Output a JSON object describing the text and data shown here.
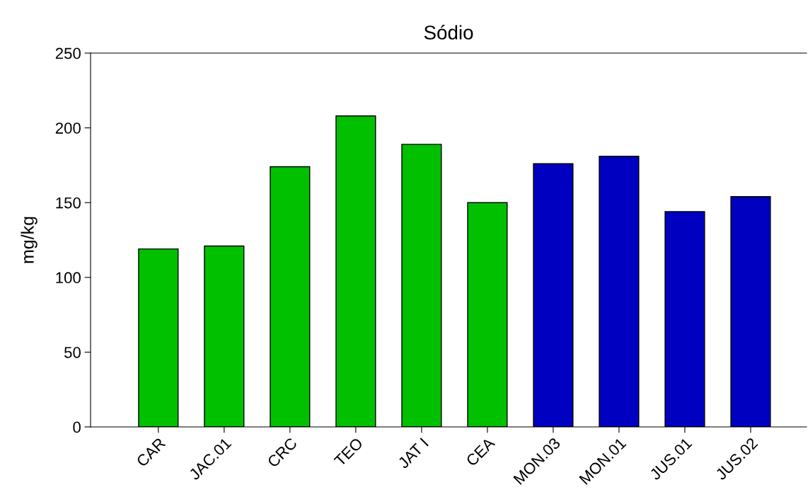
{
  "chart_data": {
    "type": "bar",
    "title": "Sódio",
    "ylabel": "mg/kg",
    "categories": [
      "CAR",
      "JAC.01",
      "CRC",
      "TEO",
      "JAT I",
      "CEA",
      "MON.03",
      "MON.01",
      "JUS.01",
      "JUS.02"
    ],
    "values": [
      119,
      121,
      174,
      208,
      189,
      150,
      176,
      181,
      144,
      154
    ],
    "colors": [
      "#00c000",
      "#00c000",
      "#00c000",
      "#00c000",
      "#00c000",
      "#00c000",
      "#0000c0",
      "#0000c0",
      "#0000c0",
      "#0000c0"
    ],
    "ylim": [
      0,
      250
    ],
    "yticks": [
      0,
      50,
      100,
      150,
      200,
      250
    ],
    "grid": false,
    "legend": false
  }
}
